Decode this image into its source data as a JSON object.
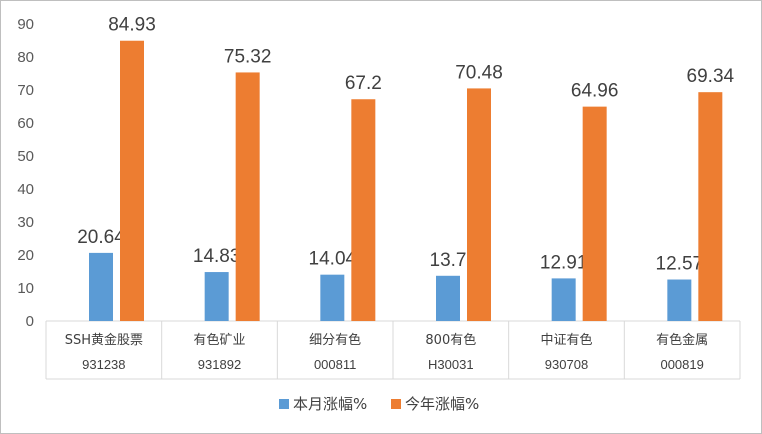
{
  "chart_data": {
    "type": "bar",
    "categories": [
      "SSH黄金股票",
      "有色矿业",
      "细分有色",
      "800有色",
      "中证有色",
      "有色金属"
    ],
    "category_codes": [
      "931238",
      "931892",
      "000811",
      "H30031",
      "930708",
      "000819"
    ],
    "series": [
      {
        "name": "本月涨幅%",
        "values": [
          20.64,
          14.83,
          14.04,
          13.7,
          12.91,
          12.57
        ],
        "color": "#5b9bd5",
        "labels": [
          "20.64",
          "14.83",
          "14.04",
          "13.7",
          "12.91",
          "12.57"
        ]
      },
      {
        "name": "今年涨幅%",
        "values": [
          84.93,
          75.32,
          67.2,
          70.48,
          64.96,
          69.34
        ],
        "color": "#ed7d31",
        "labels": [
          "84.93",
          "75.32",
          "67.2",
          "70.48",
          "64.96",
          "69.34"
        ]
      }
    ],
    "yticks": [
      "0",
      "10",
      "20",
      "30",
      "40",
      "50",
      "60",
      "70",
      "80",
      "90"
    ],
    "ylim": [
      0,
      90
    ],
    "grid": false,
    "legend_position": "bottom"
  }
}
